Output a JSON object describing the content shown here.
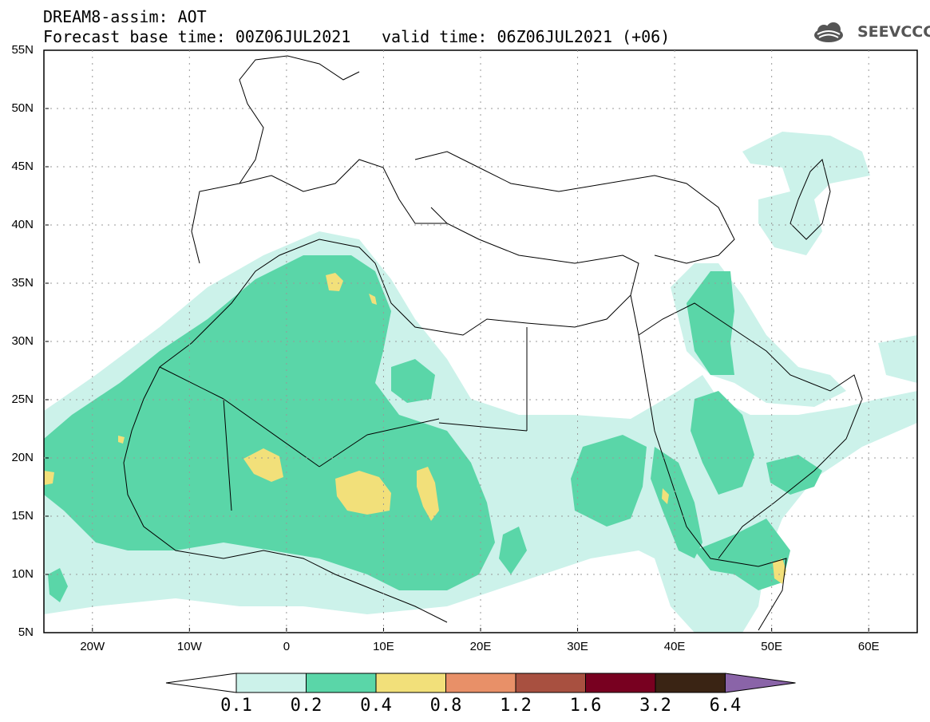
{
  "header": {
    "title": "DREAM8-assim: AOT",
    "base_time": "Forecast base time: 00Z06JUL2021",
    "valid_time": "valid time: 06Z06JUL2021 (+06)"
  },
  "logo": {
    "text": "SEEVCCC",
    "icon": "cloud-logo-icon"
  },
  "map": {
    "lat_labels": [
      "55N",
      "50N",
      "45N",
      "40N",
      "35N",
      "30N",
      "25N",
      "20N",
      "15N",
      "10N",
      "5N"
    ],
    "lon_labels": [
      "20W",
      "10W",
      "0",
      "10E",
      "20E",
      "30E",
      "40E",
      "50E",
      "60E"
    ],
    "lat_range": [
      5,
      55
    ],
    "lon_range": [
      -25,
      65
    ]
  },
  "colorbar": {
    "labels": [
      "0.1",
      "0.2",
      "0.4",
      "0.8",
      "1.2",
      "1.6",
      "3.2",
      "6.4"
    ],
    "colors": [
      "#ccf2ea",
      "#5ad6a8",
      "#f2e07a",
      "#e89068",
      "#a85040",
      "#780020",
      "#3a2414",
      "#8a64a8"
    ]
  }
}
